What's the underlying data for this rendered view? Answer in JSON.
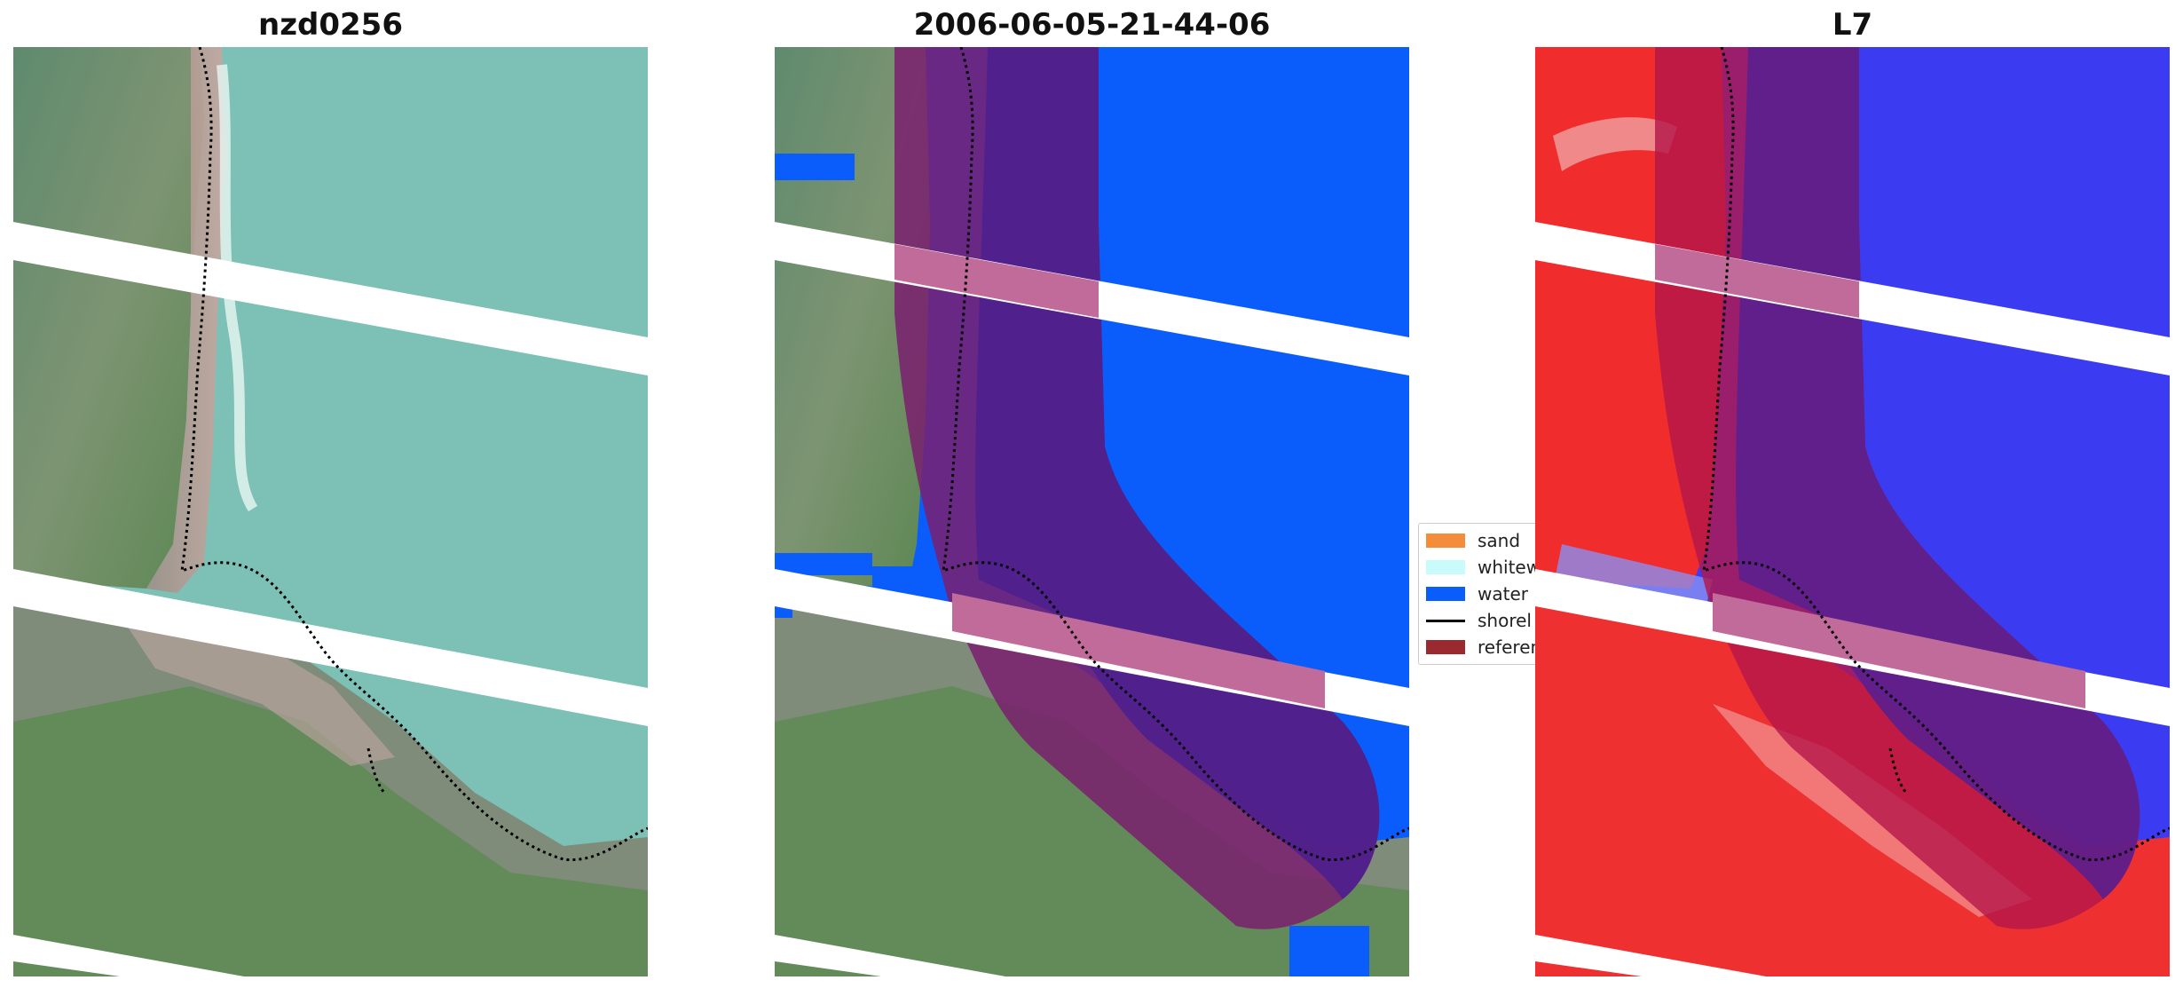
{
  "panels": [
    {
      "title": "nzd0256"
    },
    {
      "title": "2006-06-05-21-44-06"
    },
    {
      "title": "L7"
    }
  ],
  "legend": {
    "items": [
      {
        "label": "sand",
        "color": "#f58c3a",
        "kind": "patch"
      },
      {
        "label": "whitewa",
        "color": "#c8fbfa",
        "kind": "patch"
      },
      {
        "label": "water",
        "color": "#0a5dfb",
        "kind": "patch"
      },
      {
        "label": "shorel",
        "color": "#000000",
        "kind": "line"
      },
      {
        "label": "referen",
        "color": "#9b2a30",
        "kind": "patch"
      }
    ]
  },
  "colors": {
    "sea_rgb": "#7bbfb4",
    "land_green": "#6f8f6a",
    "beach_pink": "#b79a92",
    "water_class": "#0a5dfb",
    "reference_band": "#7a1f6e",
    "index_red": "#f02020",
    "index_blue": "#3c3cf0"
  }
}
